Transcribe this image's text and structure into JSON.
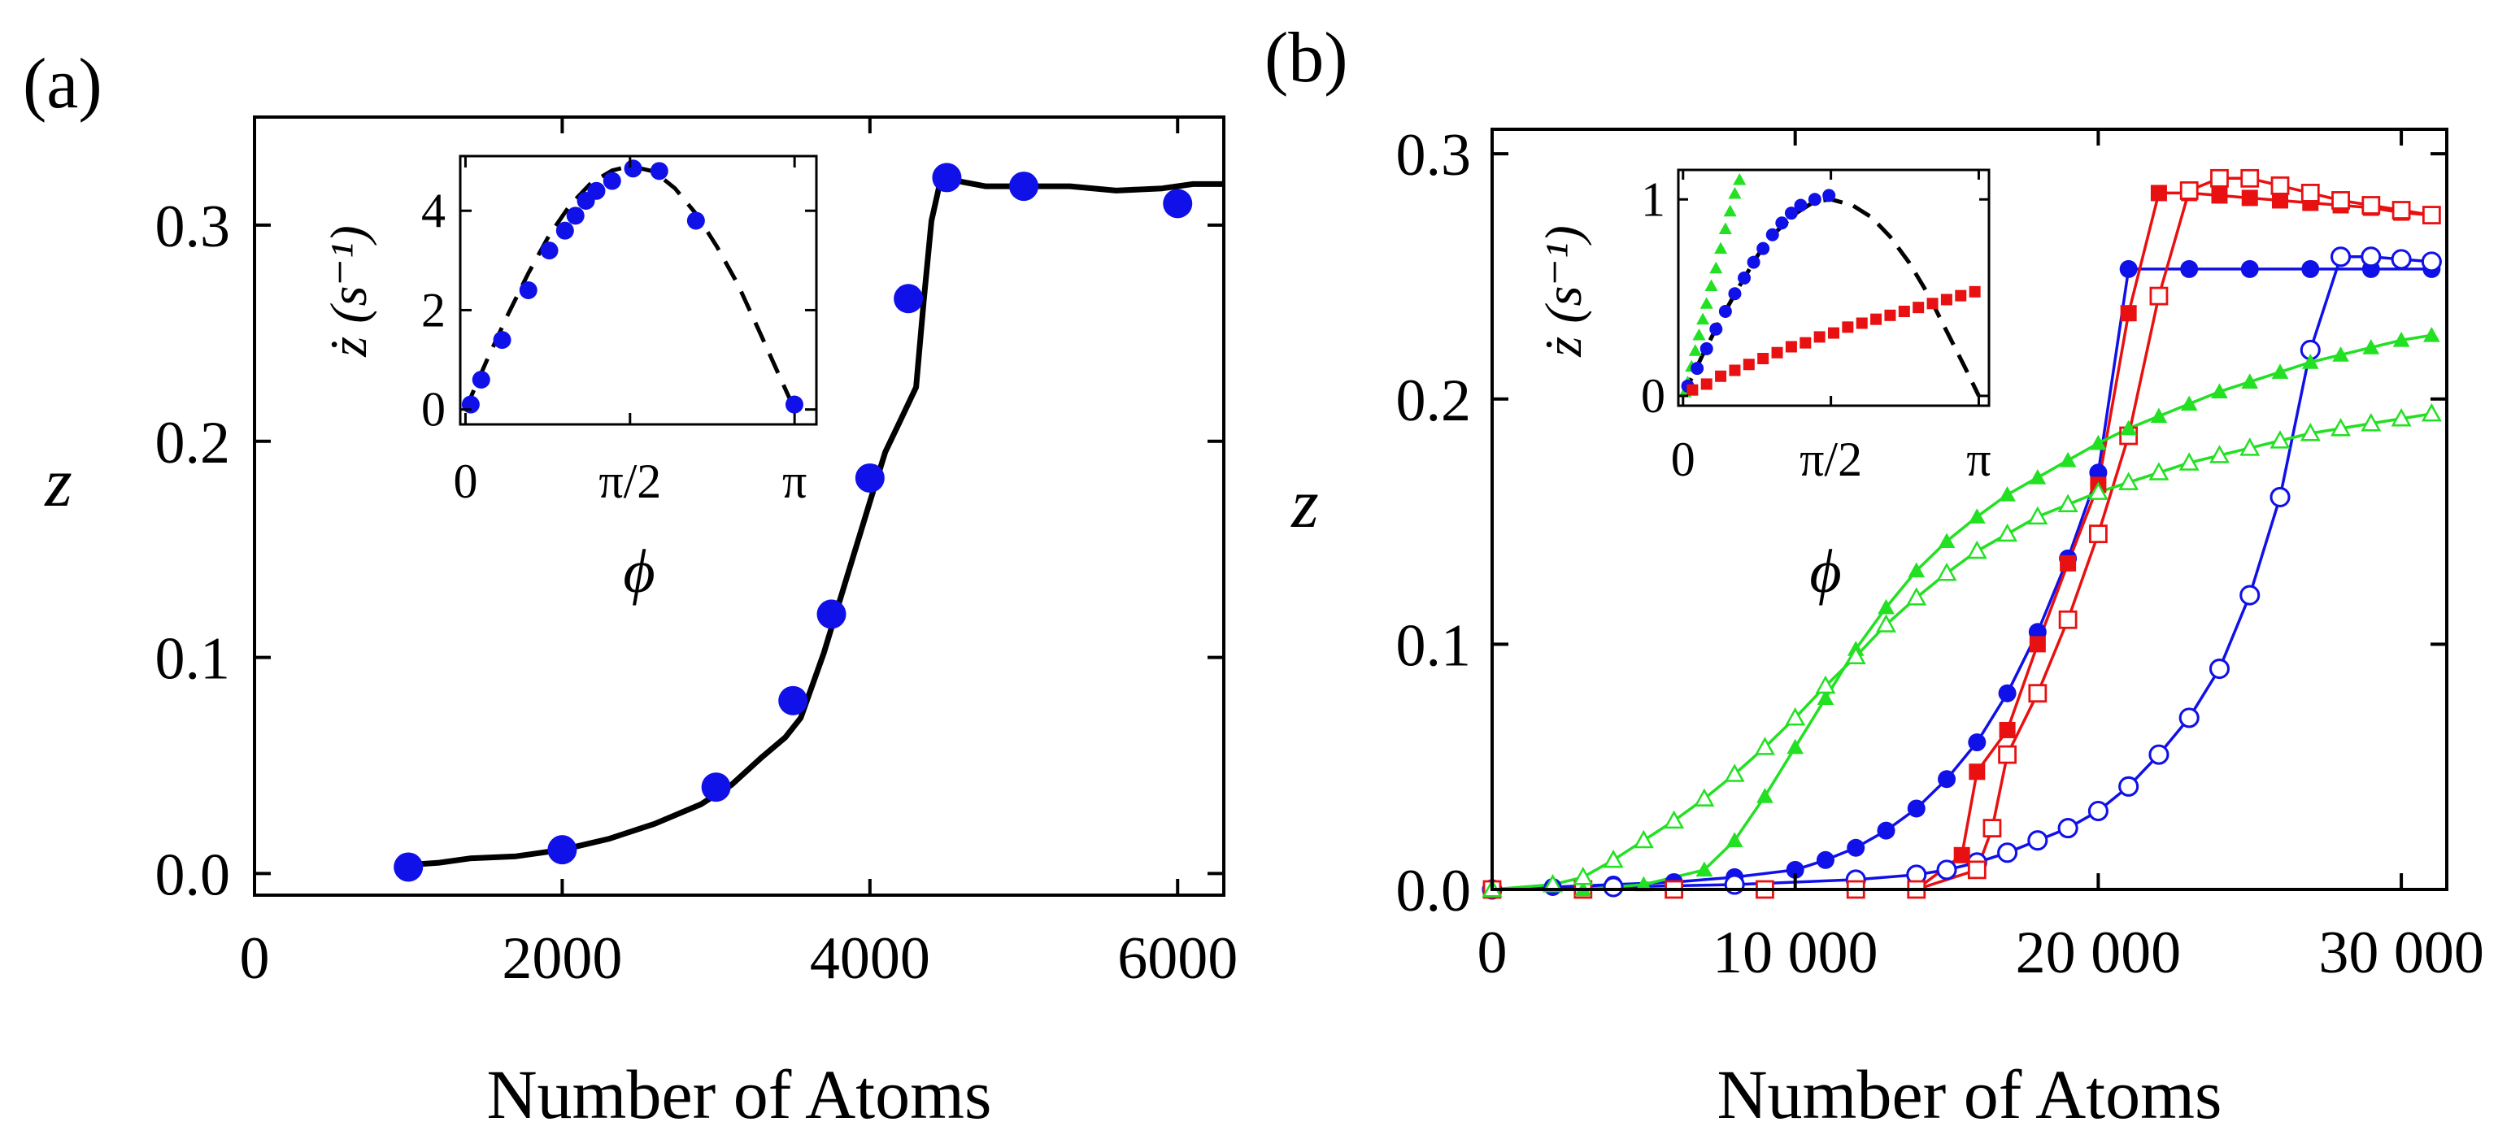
{
  "chart_data": [
    {
      "panel": "a",
      "type": "scatter",
      "panel_label": "(a)",
      "xlabel": "Number of Atoms",
      "ylabel": "z",
      "xlim": [
        0,
        6300
      ],
      "ylim": [
        -0.01,
        0.35
      ],
      "x_ticks": [
        0,
        2000,
        4000,
        6000
      ],
      "x_tick_labels": [
        "0",
        "2000",
        "4000",
        "6000"
      ],
      "y_ticks": [
        0.0,
        0.1,
        0.2,
        0.3
      ],
      "y_tick_labels": [
        "0.0",
        "0.1",
        "0.2",
        "0.3"
      ],
      "colors": {
        "points": "#1010e8",
        "curve": "#000000"
      },
      "series": [
        {
          "name": "data",
          "style": "filled-circle",
          "x": [
            1000,
            2000,
            3000,
            3500,
            3750,
            4000,
            4250,
            4500,
            5000,
            6000
          ],
          "y": [
            0.003,
            0.011,
            0.04,
            0.08,
            0.12,
            0.183,
            0.266,
            0.322,
            0.318,
            0.31
          ]
        },
        {
          "name": "simulation",
          "style": "solid-line",
          "x": [
            1000,
            1200,
            1400,
            1700,
            2000,
            2300,
            2600,
            2900,
            3100,
            3300,
            3450,
            3550,
            3700,
            3850,
            4000,
            4100,
            4200,
            4300,
            4350,
            4400,
            4450,
            4500,
            4600,
            4750,
            5000,
            5300,
            5600,
            5900,
            6100,
            6300
          ],
          "y": [
            0.004,
            0.005,
            0.007,
            0.008,
            0.011,
            0.016,
            0.023,
            0.032,
            0.041,
            0.054,
            0.063,
            0.072,
            0.102,
            0.137,
            0.172,
            0.195,
            0.21,
            0.225,
            0.265,
            0.302,
            0.318,
            0.322,
            0.32,
            0.318,
            0.318,
            0.318,
            0.316,
            0.317,
            0.319,
            0.319
          ]
        }
      ],
      "inset": {
        "xlabel": "ϕ",
        "ylabel": "ż (s⁻¹)",
        "xlim": [
          -0.05,
          3.35
        ],
        "ylim": [
          -0.3,
          5.1
        ],
        "x_ticks": [
          0,
          1.5708,
          3.1416
        ],
        "x_tick_labels": [
          "0",
          "π/2",
          "π"
        ],
        "y_ticks": [
          0,
          2,
          4
        ],
        "y_tick_labels": [
          "0",
          "2",
          "4"
        ],
        "series": [
          {
            "name": "data",
            "style": "filled-circle",
            "x": [
              0.05,
              0.15,
              0.35,
              0.6,
              0.8,
              0.95,
              1.05,
              1.15,
              1.25,
              1.4,
              1.6,
              1.85,
              2.2,
              3.14
            ],
            "y": [
              0.1,
              0.6,
              1.4,
              2.4,
              3.2,
              3.6,
              3.9,
              4.2,
              4.4,
              4.6,
              4.85,
              4.8,
              3.8,
              0.1
            ]
          },
          {
            "name": "fit",
            "style": "dashed-line",
            "x": [
              0,
              0.2,
              0.4,
              0.6,
              0.8,
              1.0,
              1.2,
              1.4,
              1.5708,
              1.8,
              2.0,
              2.2,
              2.4,
              2.6,
              2.8,
              3.0,
              3.1416
            ],
            "y": [
              0,
              0.97,
              1.89,
              2.74,
              3.51,
              4.12,
              4.56,
              4.81,
              4.9,
              4.79,
              4.45,
              3.94,
              3.28,
              2.52,
              1.6,
              0.66,
              0
            ]
          }
        ]
      }
    },
    {
      "panel": "b",
      "type": "scatter",
      "panel_label": "(b)",
      "xlabel": "Number of Atoms",
      "ylabel": "z",
      "xlim": [
        0,
        31500
      ],
      "ylim": [
        0,
        0.31
      ],
      "x_ticks": [
        0,
        10000,
        20000,
        30000
      ],
      "x_tick_labels": [
        "0",
        "10 000",
        "20 000",
        "30 000"
      ],
      "y_ticks": [
        0.0,
        0.1,
        0.2,
        0.3
      ],
      "y_tick_labels": [
        "0.0",
        "0.1",
        "0.2",
        "0.3"
      ],
      "series": [
        {
          "name": "blue filled",
          "color": "#1010e8",
          "marker": "circle",
          "filled": true,
          "x": [
            0,
            2000,
            4000,
            6000,
            8000,
            10000,
            11000,
            12000,
            13000,
            14000,
            15000,
            16000,
            17000,
            18000,
            19000,
            20000,
            21000,
            23000,
            25000,
            27000,
            29000,
            31000
          ],
          "y": [
            0.0,
            0.001,
            0.002,
            0.003,
            0.005,
            0.008,
            0.012,
            0.017,
            0.024,
            0.033,
            0.045,
            0.06,
            0.08,
            0.105,
            0.135,
            0.17,
            0.253,
            0.253,
            0.253,
            0.253,
            0.253,
            0.253
          ]
        },
        {
          "name": "blue open",
          "color": "#1010e8",
          "marker": "circle",
          "filled": false,
          "x": [
            0,
            4000,
            8000,
            12000,
            14000,
            15000,
            16000,
            17000,
            18000,
            19000,
            20000,
            21000,
            22000,
            23000,
            24000,
            25000,
            26000,
            27000,
            28000,
            29000,
            30000,
            31000
          ],
          "y": [
            0.0,
            0.001,
            0.002,
            0.004,
            0.006,
            0.008,
            0.011,
            0.015,
            0.02,
            0.025,
            0.032,
            0.042,
            0.055,
            0.07,
            0.09,
            0.12,
            0.16,
            0.22,
            0.258,
            0.258,
            0.257,
            0.256
          ]
        },
        {
          "name": "red filled",
          "color": "#e81010",
          "marker": "square",
          "filled": true,
          "x": [
            0,
            3000,
            6000,
            9000,
            12000,
            14000,
            15500,
            16000,
            17000,
            18000,
            19000,
            20000,
            21000,
            22000,
            23000,
            24000,
            25000,
            26000,
            27000,
            28000,
            29000,
            30000,
            31000
          ],
          "y": [
            0.0,
            0.0,
            0.0,
            0.0,
            0.0,
            0.0,
            0.014,
            0.048,
            0.065,
            0.1,
            0.133,
            0.165,
            0.235,
            0.284,
            0.284,
            0.283,
            0.282,
            0.281,
            0.28,
            0.279,
            0.278,
            0.276,
            0.275
          ]
        },
        {
          "name": "red open",
          "color": "#e81010",
          "marker": "square",
          "filled": false,
          "x": [
            0,
            3000,
            6000,
            9000,
            12000,
            14000,
            16000,
            16500,
            17000,
            18000,
            19000,
            20000,
            21000,
            22000,
            23000,
            24000,
            25000,
            26000,
            27000,
            28000,
            29000,
            30000,
            31000
          ],
          "y": [
            0.0,
            0.0,
            0.0,
            0.0,
            0.0,
            0.0,
            0.008,
            0.025,
            0.055,
            0.08,
            0.11,
            0.145,
            0.185,
            0.242,
            0.285,
            0.29,
            0.29,
            0.287,
            0.284,
            0.281,
            0.279,
            0.277,
            0.275
          ]
        },
        {
          "name": "green filled",
          "color": "#22e022",
          "marker": "triangle",
          "filled": true,
          "x": [
            0,
            3000,
            5000,
            7000,
            8000,
            9000,
            10000,
            11000,
            12000,
            13000,
            14000,
            15000,
            16000,
            17000,
            18000,
            19000,
            20000,
            21000,
            22000,
            23000,
            24000,
            25000,
            26000,
            27000,
            28000,
            29000,
            30000,
            31000
          ],
          "y": [
            0.0,
            0.0,
            0.002,
            0.008,
            0.02,
            0.038,
            0.058,
            0.078,
            0.098,
            0.115,
            0.13,
            0.142,
            0.152,
            0.161,
            0.168,
            0.175,
            0.182,
            0.188,
            0.193,
            0.198,
            0.203,
            0.207,
            0.211,
            0.215,
            0.218,
            0.221,
            0.224,
            0.226
          ]
        },
        {
          "name": "green open",
          "color": "#22e022",
          "marker": "triangle",
          "filled": false,
          "x": [
            0,
            2000,
            3000,
            4000,
            5000,
            6000,
            7000,
            8000,
            9000,
            10000,
            11000,
            12000,
            13000,
            14000,
            15000,
            16000,
            17000,
            18000,
            19000,
            20000,
            21000,
            22000,
            23000,
            24000,
            25000,
            26000,
            27000,
            28000,
            29000,
            30000,
            31000
          ],
          "y": [
            0.0,
            0.002,
            0.005,
            0.012,
            0.02,
            0.028,
            0.037,
            0.047,
            0.058,
            0.07,
            0.083,
            0.095,
            0.108,
            0.119,
            0.129,
            0.138,
            0.145,
            0.152,
            0.157,
            0.162,
            0.166,
            0.17,
            0.174,
            0.177,
            0.18,
            0.183,
            0.186,
            0.188,
            0.19,
            0.192,
            0.194
          ]
        }
      ],
      "inset": {
        "xlabel": "ϕ",
        "ylabel": "ż (s⁻¹)",
        "xlim": [
          -0.05,
          3.25
        ],
        "ylim": [
          -0.05,
          1.15
        ],
        "x_ticks": [
          0,
          1.5708,
          3.1416
        ],
        "x_tick_labels": [
          "0",
          "π/2",
          "π"
        ],
        "y_ticks": [
          0,
          1
        ],
        "y_tick_labels": [
          "0",
          "1"
        ],
        "series": [
          {
            "name": "green",
            "color": "#22e022",
            "marker": "triangle",
            "filled": true,
            "x": [
              0.02,
              0.05,
              0.09,
              0.13,
              0.17,
              0.21,
              0.25,
              0.3,
              0.35,
              0.4,
              0.45,
              0.5,
              0.55,
              0.6
            ],
            "y": [
              0.02,
              0.07,
              0.15,
              0.23,
              0.31,
              0.39,
              0.47,
              0.56,
              0.65,
              0.75,
              0.85,
              0.94,
              1.03,
              1.1
            ]
          },
          {
            "name": "blue",
            "color": "#1010e8",
            "marker": "circle",
            "filled": true,
            "x": [
              0.05,
              0.15,
              0.25,
              0.35,
              0.45,
              0.55,
              0.65,
              0.75,
              0.85,
              0.95,
              1.05,
              1.15,
              1.25,
              1.4,
              1.55
            ],
            "y": [
              0.05,
              0.14,
              0.24,
              0.34,
              0.43,
              0.52,
              0.6,
              0.68,
              0.75,
              0.82,
              0.88,
              0.93,
              0.97,
              1.0,
              1.02
            ]
          },
          {
            "name": "red",
            "color": "#e81010",
            "marker": "square",
            "filled": true,
            "x": [
              0.1,
              0.25,
              0.4,
              0.55,
              0.7,
              0.85,
              1.0,
              1.15,
              1.3,
              1.45,
              1.6,
              1.75,
              1.9,
              2.05,
              2.2,
              2.35,
              2.5,
              2.65,
              2.8,
              2.95,
              3.1
            ],
            "y": [
              0.03,
              0.06,
              0.1,
              0.13,
              0.16,
              0.19,
              0.22,
              0.25,
              0.27,
              0.3,
              0.32,
              0.35,
              0.37,
              0.39,
              0.41,
              0.43,
              0.45,
              0.47,
              0.49,
              0.51,
              0.53
            ]
          },
          {
            "name": "fit",
            "style": "dashed-line",
            "color": "#000000",
            "x": [
              0,
              0.2,
              0.4,
              0.6,
              0.8,
              1.0,
              1.2,
              1.4,
              1.5708,
              1.8,
              2.0,
              2.2,
              2.4,
              2.6,
              2.8,
              3.0,
              3.1416
            ],
            "y": [
              0,
              0.2,
              0.39,
              0.56,
              0.72,
              0.84,
              0.93,
              0.99,
              1.0,
              0.97,
              0.91,
              0.81,
              0.68,
              0.52,
              0.33,
              0.14,
              0
            ]
          }
        ]
      }
    }
  ]
}
